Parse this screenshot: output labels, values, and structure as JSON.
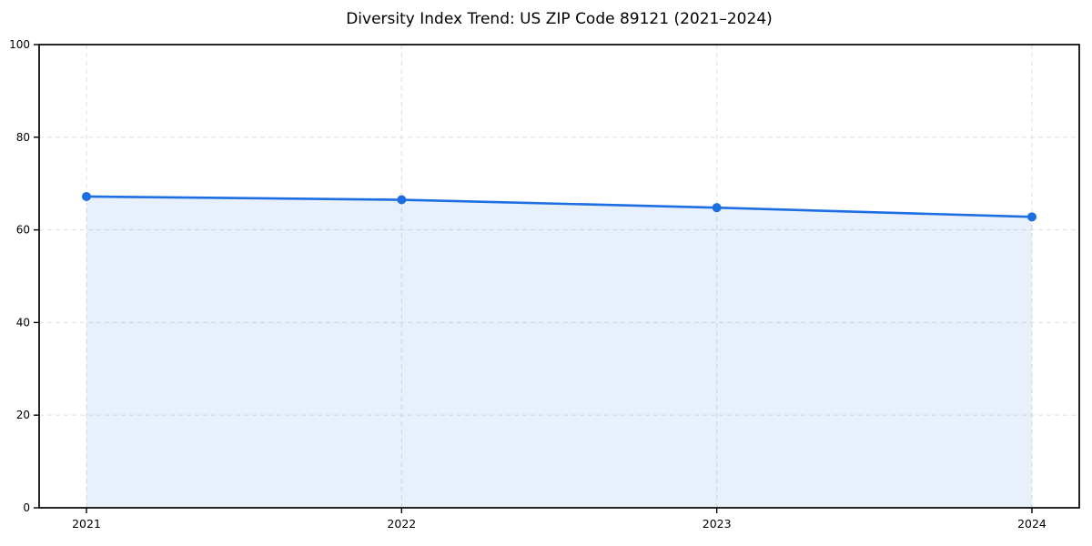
{
  "chart_data": {
    "type": "line",
    "title": "Diversity Index Trend: US ZIP Code 89121 (2021–2024)",
    "categories": [
      "2021",
      "2022",
      "2023",
      "2024"
    ],
    "series": [
      {
        "name": "Diversity Index",
        "values": [
          67.2,
          66.5,
          64.8,
          62.8
        ]
      }
    ],
    "xlabel": "",
    "ylabel": "",
    "ylim": [
      0,
      100
    ],
    "yticks": [
      0,
      20,
      40,
      60,
      80,
      100
    ],
    "grid": true,
    "grid_style": "dashed",
    "area_fill": true,
    "legend_position": "none",
    "marker": "circle",
    "colors": {
      "line": "#1c6ee2",
      "marker": "#1c6ee2",
      "area": "#1c6ee2",
      "area_opacity": 0.1,
      "grid": "#e2e2e2",
      "axis": "#000000",
      "tick_label": "#000000",
      "title": "#000000",
      "background": "#ffffff"
    }
  }
}
